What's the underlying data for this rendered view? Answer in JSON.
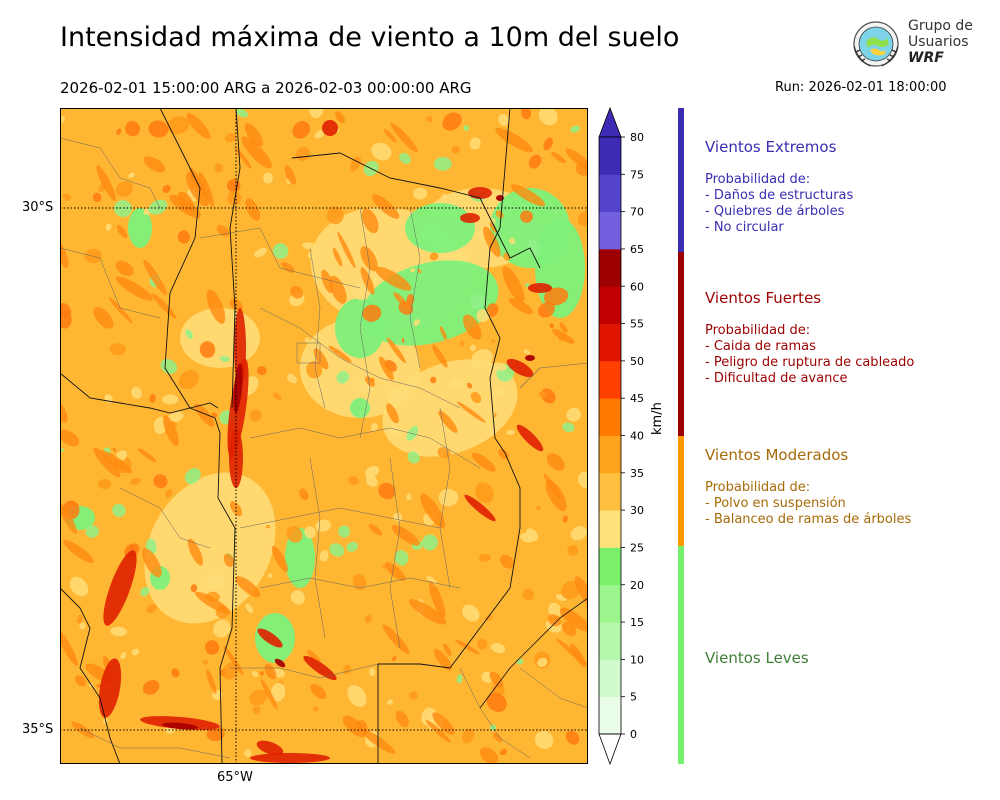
{
  "header": {
    "title": "Intensidad máxima de viento a 10m del suelo",
    "subtitle": "2026-02-01 15:00:00 ARG  a  2026-02-03 00:00:00 ARG",
    "run": "Run: 2026-02-01 18:00:00"
  },
  "logo": {
    "line1": "Grupo de",
    "line2": "Usuarios",
    "line3": "WRF"
  },
  "map": {
    "lat_labels": [
      "30°S",
      "35°S"
    ],
    "lon_labels": [
      "65°W"
    ],
    "grid": "dotted"
  },
  "colorbar": {
    "unit": "km/h",
    "ticks": [
      "0",
      "5",
      "10",
      "15",
      "20",
      "25",
      "30",
      "35",
      "40",
      "45",
      "50",
      "55",
      "60",
      "65",
      "70",
      "75",
      "80"
    ],
    "colors": [
      "#e9fde8",
      "#d2fbcd",
      "#b6f8ad",
      "#9bf58c",
      "#7af06a",
      "#ffe17a",
      "#ffc040",
      "#ffa31a",
      "#ff7b00",
      "#ff4000",
      "#e01500",
      "#c00000",
      "#9c0000",
      "#7360de",
      "#5443cc",
      "#3e2bb5"
    ],
    "extend_low": "#ffffff",
    "extend_high": "#3e2bb5"
  },
  "legend": {
    "categories": [
      {
        "title": "Vientos Extremos",
        "color": "#3a2db0",
        "desc_color": "#3a2db0",
        "lines": [
          " Probabilidad de:",
          " - Daños de estructuras",
          " - Quiebres de árboles",
          " - No circular"
        ]
      },
      {
        "title": "Vientos Fuertes",
        "color": "#9b0000",
        "desc_color": "#9b0000",
        "lines": [
          " Probabilidad de:",
          " - Caida de ramas",
          " - Peligro de ruptura de cableado",
          " - Dificultad de avance"
        ]
      },
      {
        "title": "Vientos Moderados",
        "color": "#ff9900",
        "desc_color": "#a66a08",
        "lines": [
          " Probabilidad de:",
          " - Polvo en suspensión",
          " - Balanceo de ramas de árboles"
        ]
      },
      {
        "title": "Vientos Leves",
        "color": "#77f06b",
        "desc_color": "#3e7f35",
        "lines": []
      }
    ]
  }
}
